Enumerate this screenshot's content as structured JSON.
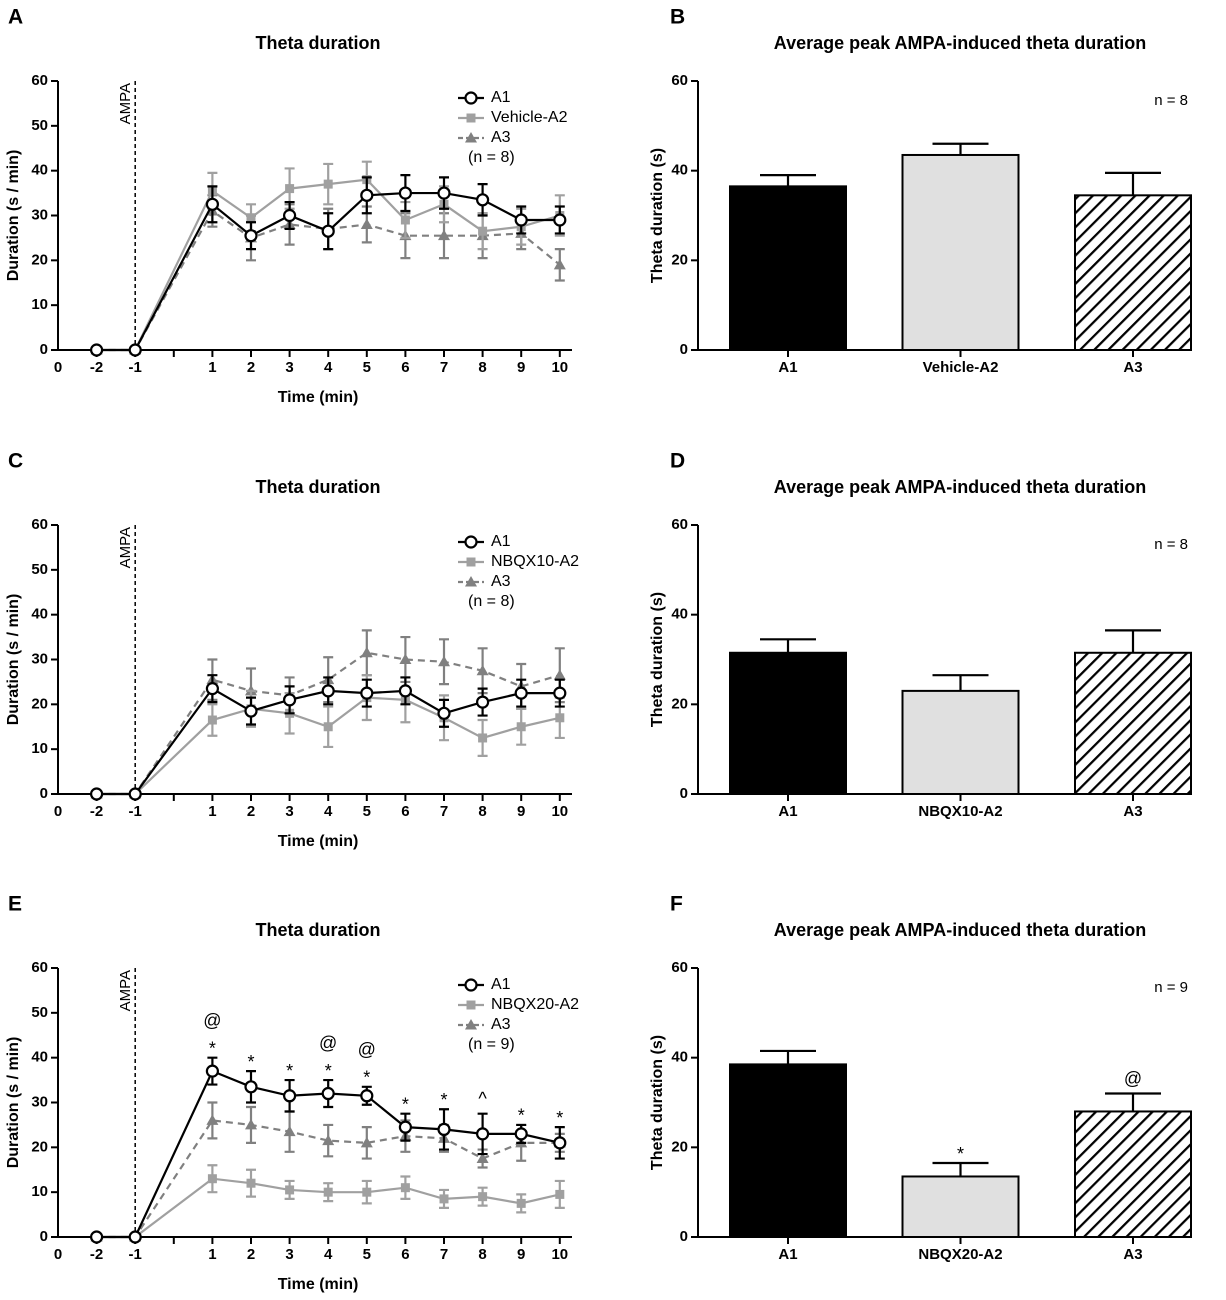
{
  "chart_data": [
    {
      "type": "line",
      "label": "A",
      "title": "Theta duration",
      "xlabel": "Time (min)",
      "ylabel": "Duration (s / min)",
      "x_origin_label": "0",
      "categories": [
        "-2",
        "-1",
        "1",
        "2",
        "3",
        "4",
        "5",
        "6",
        "7",
        "8",
        "9",
        "10"
      ],
      "annotation": "AMPA",
      "ylim": [
        0,
        60
      ],
      "yticks": [
        0,
        10,
        20,
        30,
        40,
        50,
        60
      ],
      "legend_note": "(n = 8)",
      "series": [
        {
          "name": "A1",
          "color": "#000000",
          "marker": "circle",
          "dashed": false,
          "values": [
            0,
            0,
            32.5,
            25.5,
            30,
            26.5,
            34.5,
            35,
            35,
            33.5,
            29,
            29
          ],
          "errors": [
            null,
            null,
            4,
            3,
            3,
            4,
            4,
            4,
            3.5,
            3.5,
            3,
            3
          ]
        },
        {
          "name": "Vehicle-A2",
          "color": "#a0a0a0",
          "marker": "square",
          "dashed": false,
          "values": [
            0,
            0,
            35.5,
            29.5,
            36,
            37,
            38,
            29,
            32.5,
            26.5,
            27.5,
            30
          ],
          "errors": [
            null,
            null,
            4,
            3,
            4.5,
            4.5,
            4,
            4,
            4,
            4,
            4,
            4.5
          ]
        },
        {
          "name": "A3",
          "color": "#808080",
          "marker": "triangle",
          "dashed": true,
          "values": [
            0,
            0,
            31,
            25,
            28,
            27,
            28,
            25.5,
            25.5,
            25.5,
            26,
            19
          ],
          "errors": [
            null,
            null,
            3.5,
            5,
            4.5,
            4.5,
            4,
            5,
            5,
            5,
            3.5,
            3.5
          ]
        }
      ]
    },
    {
      "type": "bar",
      "label": "B",
      "title": "Average peak AMPA-induced theta duration",
      "ylabel": "Theta duration (s)",
      "categories": [
        "A1",
        "Vehicle-A2",
        "A3"
      ],
      "values": [
        36.5,
        43.5,
        34.5
      ],
      "errors": [
        2.5,
        2.5,
        5
      ],
      "colors": [
        "#000000",
        "#e0e0e0",
        "#ffffff"
      ],
      "patterns": [
        null,
        null,
        "diagonal"
      ],
      "ylim": [
        0,
        60
      ],
      "yticks": [
        0,
        20,
        40,
        60
      ],
      "annotation": "n = 8"
    },
    {
      "type": "line",
      "label": "C",
      "title": "Theta duration",
      "xlabel": "Time (min)",
      "ylabel": "Duration (s / min)",
      "x_origin_label": "0",
      "categories": [
        "-2",
        "-1",
        "1",
        "2",
        "3",
        "4",
        "5",
        "6",
        "7",
        "8",
        "9",
        "10"
      ],
      "annotation": "AMPA",
      "ylim": [
        0,
        60
      ],
      "yticks": [
        0,
        10,
        20,
        30,
        40,
        50,
        60
      ],
      "legend_note": "(n = 8)",
      "series": [
        {
          "name": "A1",
          "color": "#000000",
          "marker": "circle",
          "dashed": false,
          "values": [
            0,
            0,
            23.5,
            18.5,
            21,
            23,
            22.5,
            23,
            18,
            20.5,
            22.5,
            22.5
          ],
          "errors": [
            null,
            null,
            3,
            3,
            3,
            3,
            3,
            3,
            3,
            3,
            3,
            3
          ]
        },
        {
          "name": "NBQX10-A2",
          "color": "#a0a0a0",
          "marker": "square",
          "dashed": false,
          "values": [
            0,
            0,
            16.5,
            19,
            18,
            15,
            21.5,
            21,
            17,
            12.5,
            15,
            17
          ],
          "errors": [
            null,
            null,
            3.5,
            4,
            4.5,
            4.5,
            5,
            5,
            5,
            4,
            4,
            4.5
          ]
        },
        {
          "name": "A3",
          "color": "#808080",
          "marker": "triangle",
          "dashed": true,
          "values": [
            0,
            0,
            25.5,
            23,
            22,
            25.5,
            31.5,
            30,
            29.5,
            27.5,
            24,
            26.5
          ],
          "errors": [
            null,
            null,
            4.5,
            5,
            4,
            5,
            5,
            5,
            5,
            5,
            5,
            6
          ]
        }
      ]
    },
    {
      "type": "bar",
      "label": "D",
      "title": "Average peak AMPA-induced theta duration",
      "ylabel": "Theta duration (s)",
      "categories": [
        "A1",
        "NBQX10-A2",
        "A3"
      ],
      "values": [
        31.5,
        23,
        31.5
      ],
      "errors": [
        3,
        3.5,
        5
      ],
      "colors": [
        "#000000",
        "#e0e0e0",
        "#ffffff"
      ],
      "patterns": [
        null,
        null,
        "diagonal"
      ],
      "ylim": [
        0,
        60
      ],
      "yticks": [
        0,
        20,
        40,
        60
      ],
      "annotation": "n = 8"
    },
    {
      "type": "line",
      "label": "E",
      "title": "Theta duration",
      "xlabel": "Time (min)",
      "ylabel": "Duration (s / min)",
      "x_origin_label": "0",
      "categories": [
        "-2",
        "-1",
        "1",
        "2",
        "3",
        "4",
        "5",
        "6",
        "7",
        "8",
        "9",
        "10"
      ],
      "annotation": "AMPA",
      "ylim": [
        0,
        60
      ],
      "yticks": [
        0,
        10,
        20,
        30,
        40,
        50,
        60
      ],
      "legend_note": "(n = 9)",
      "series": [
        {
          "name": "A1",
          "color": "#000000",
          "marker": "circle",
          "dashed": false,
          "values": [
            0,
            0,
            37,
            33.5,
            31.5,
            32,
            31.5,
            24.5,
            24,
            23,
            23,
            21
          ],
          "errors": [
            null,
            null,
            3,
            3.5,
            3.5,
            3,
            2,
            3,
            4.5,
            4.5,
            2,
            3.5
          ]
        },
        {
          "name": "NBQX20-A2",
          "color": "#a0a0a0",
          "marker": "square",
          "dashed": false,
          "values": [
            0,
            0,
            13,
            12,
            10.5,
            10,
            10,
            11,
            8.5,
            9,
            7.5,
            9.5
          ],
          "errors": [
            null,
            null,
            3,
            3,
            2,
            2,
            2.5,
            2.5,
            2,
            2,
            2,
            3
          ]
        },
        {
          "name": "A3",
          "color": "#808080",
          "marker": "triangle",
          "dashed": true,
          "values": [
            0,
            0,
            26,
            25,
            23.5,
            21.5,
            21,
            22.5,
            22,
            17.5,
            21,
            21
          ],
          "errors": [
            null,
            null,
            4,
            4,
            4.5,
            3.5,
            3.5,
            3.5,
            3,
            2,
            4,
            2
          ]
        }
      ],
      "point_annotations": [
        {
          "at": "1",
          "text": "*"
        },
        {
          "at": "1",
          "text": "@"
        },
        {
          "at": "2",
          "text": "*"
        },
        {
          "at": "3",
          "text": "*"
        },
        {
          "at": "4",
          "text": "*"
        },
        {
          "at": "4",
          "text": "@"
        },
        {
          "at": "5",
          "text": "*"
        },
        {
          "at": "5",
          "text": "@"
        },
        {
          "at": "6",
          "text": "*"
        },
        {
          "at": "7",
          "text": "*"
        },
        {
          "at": "8",
          "text": "^"
        },
        {
          "at": "9",
          "text": "*"
        },
        {
          "at": "10",
          "text": "*"
        }
      ]
    },
    {
      "type": "bar",
      "label": "F",
      "title": "Average peak AMPA-induced theta duration",
      "ylabel": "Theta duration (s)",
      "categories": [
        "A1",
        "NBQX20-A2",
        "A3"
      ],
      "values": [
        38.5,
        13.5,
        28
      ],
      "errors": [
        3,
        3,
        4
      ],
      "colors": [
        "#000000",
        "#e0e0e0",
        "#ffffff"
      ],
      "patterns": [
        null,
        null,
        "diagonal"
      ],
      "ylim": [
        0,
        60
      ],
      "yticks": [
        0,
        20,
        40,
        60
      ],
      "annotation": "n = 9",
      "bar_annotations": [
        null,
        "*",
        "@"
      ]
    }
  ]
}
